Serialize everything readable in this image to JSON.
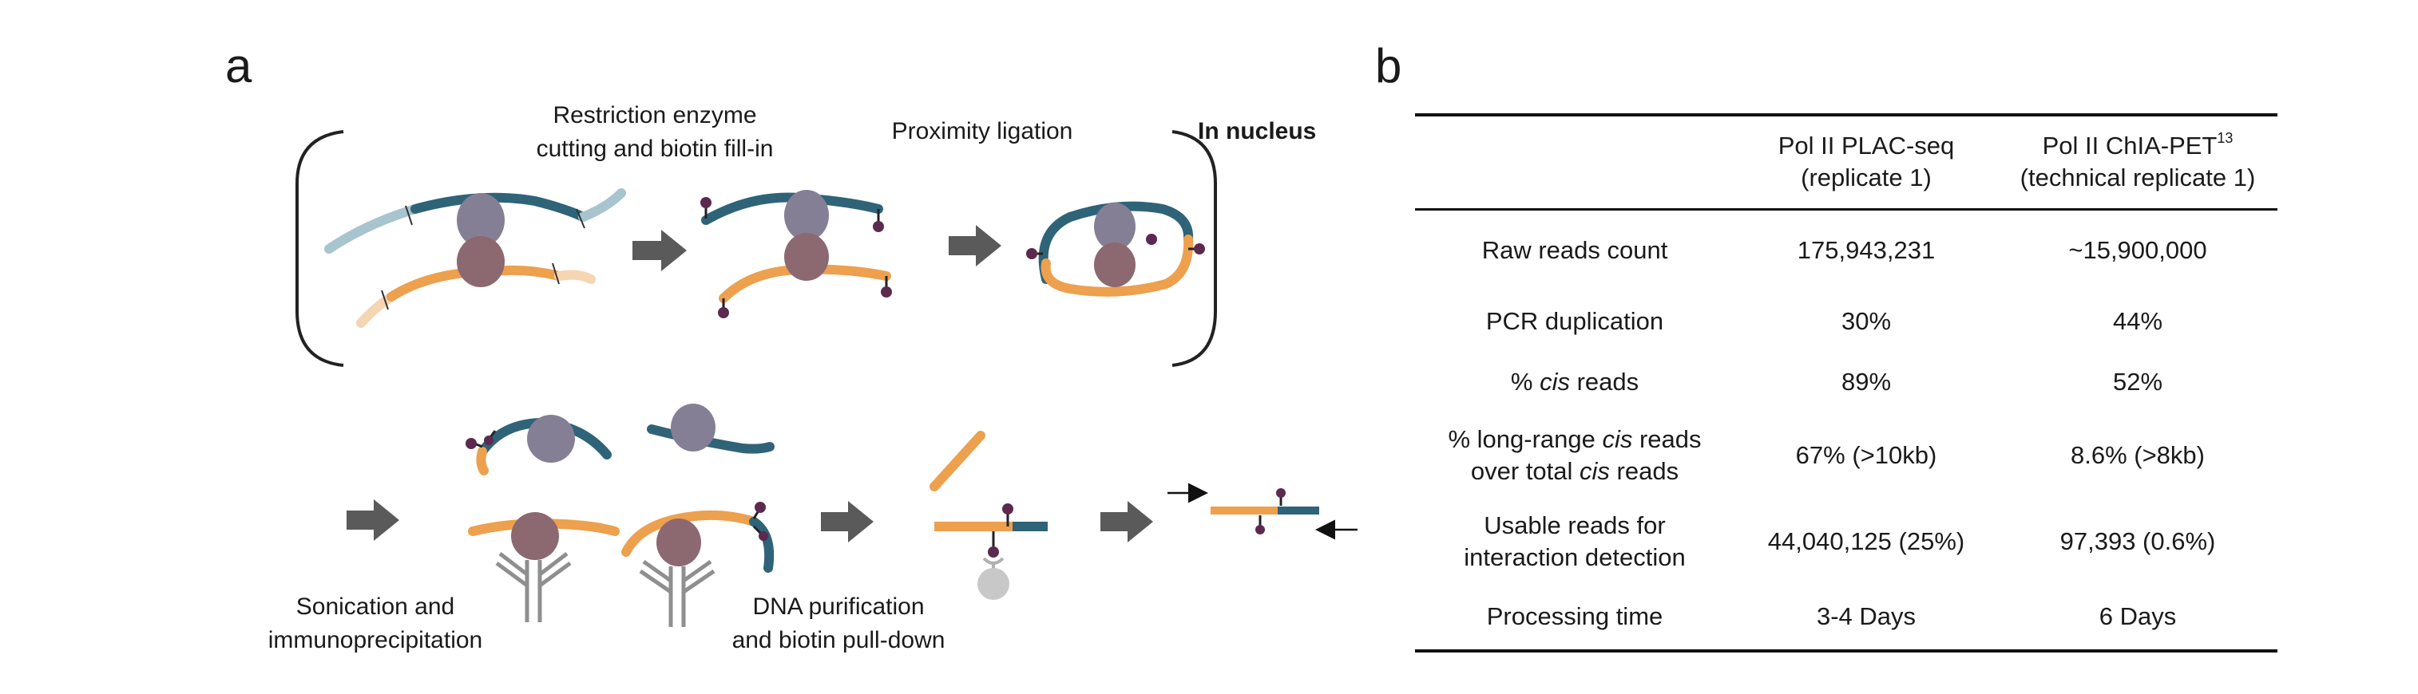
{
  "panels": {
    "a": "a",
    "b": "b"
  },
  "panel_a": {
    "step_restriction_line1": "Restriction enzyme",
    "step_restriction_line2": "cutting and biotin fill-in",
    "step_ligation": "Proximity ligation",
    "in_nucleus": "In nucleus",
    "step_sonication_line1": "Sonication and",
    "step_sonication_line2": "immunoprecipitation",
    "step_purification_line1": "DNA purification",
    "step_purification_line2": "and biotin pull-down"
  },
  "colors": {
    "blue_dna": "#2f6378",
    "light_blue_dna": "#a7c4cf",
    "orange_dna": "#eda04d",
    "light_orange_dna": "#f6d5b2",
    "pol2_upper": "#857f95",
    "pol2_lower": "#8c6870",
    "biotin": "#5b2a4e",
    "arrow_gray": "#5a5a5a",
    "antibody": "#8f8f8f"
  },
  "table": {
    "headers": {
      "col1": "",
      "col2_line1": "Pol II PLAC-seq",
      "col2_line2": "(replicate 1)",
      "col3_line1": "Pol II ChIA-PET",
      "col3_sup": "13",
      "col3_line2": "(technical replicate 1)"
    },
    "rows": [
      {
        "label": "Raw reads count",
        "plac": "175,943,231",
        "chia": "~15,900,000"
      },
      {
        "label": "PCR duplication",
        "plac": "30%",
        "chia": "44%"
      },
      {
        "label_pre": "% ",
        "label_it": "cis",
        "label_post": " reads",
        "plac": "89%",
        "chia": "52%"
      },
      {
        "label_l1_pre": "% long-range ",
        "label_l1_it": "cis",
        "label_l1_post": " reads",
        "label_l2_pre": "over total ",
        "label_l2_it": "cis",
        "label_l2_post": " reads",
        "plac": "67% (>10kb)",
        "chia": "8.6% (>8kb)"
      },
      {
        "label_l1": "Usable reads for",
        "label_l2": "interaction detection",
        "plac": "44,040,125 (25%)",
        "chia": "97,393 (0.6%)"
      },
      {
        "label": "Processing time",
        "plac": "3-4 Days",
        "chia": "6 Days"
      }
    ]
  }
}
